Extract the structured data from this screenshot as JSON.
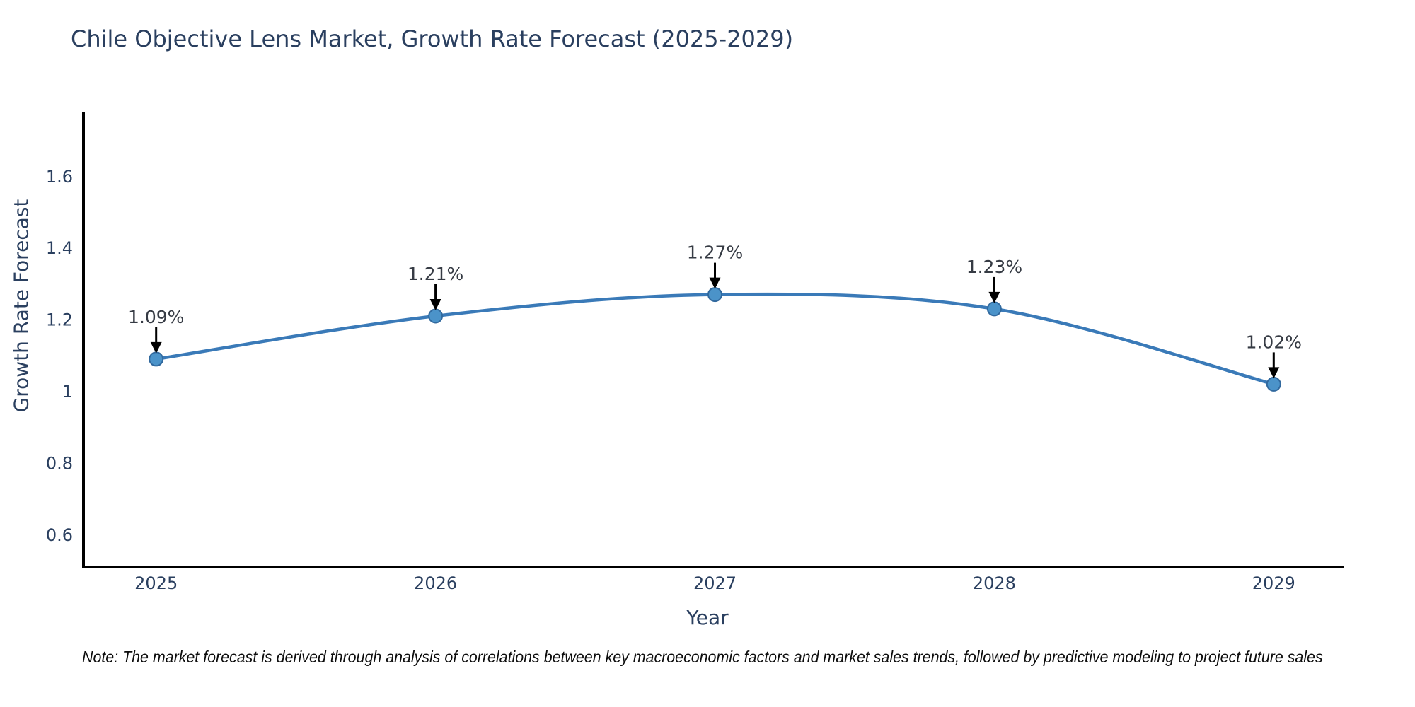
{
  "note": "Note: The market forecast is derived through analysis of correlations between key macroeconomic factors and market sales trends, followed by predictive modeling to project future sales",
  "chart_data": {
    "type": "line",
    "title": "Chile Objective Lens Market, Growth Rate Forecast (2025-2029)",
    "xlabel": "Year",
    "ylabel": "Growth Rate Forecast",
    "x": [
      2025,
      2026,
      2027,
      2028,
      2029
    ],
    "y": [
      1.09,
      1.21,
      1.27,
      1.23,
      1.02
    ],
    "point_labels": [
      "1.09%",
      "1.21%",
      "1.27%",
      "1.23%",
      "1.02%"
    ],
    "x_tick_labels": [
      "2025",
      "2026",
      "2027",
      "2028",
      "2029"
    ],
    "y_ticks": [
      1.6,
      1.4,
      1.2,
      1.0,
      0.8,
      0.6
    ],
    "y_tick_labels": [
      "1.6",
      "1.4",
      "1.2",
      "1",
      "0.8",
      "0.6"
    ],
    "xlim": [
      2024.74,
      2029.25
    ],
    "ylim": [
      0.51,
      1.78
    ],
    "grid": false,
    "legend": false,
    "line_shape": "spline",
    "colors": {
      "line": "#3a7ab8",
      "marker_fill": "#4b93c9",
      "marker_edge": "#31699e",
      "axis_line": "#000000",
      "text": "#2a3f5f",
      "annotation_text": "#363b44",
      "arrow": "#000000"
    }
  }
}
